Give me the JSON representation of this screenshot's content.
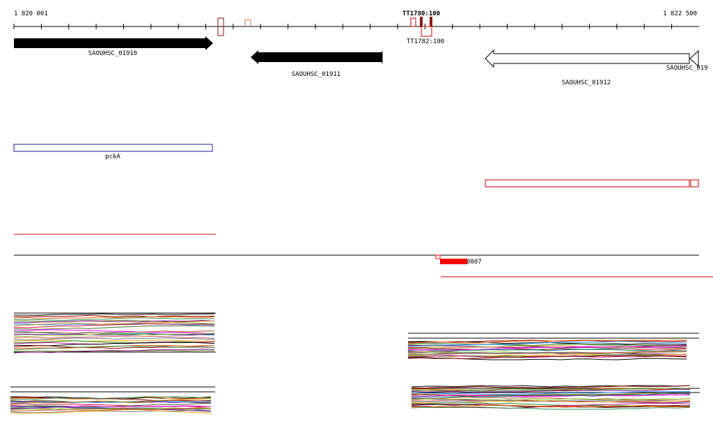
{
  "ruler": {
    "start_label": "1 820 001",
    "end_label": "1 822 500",
    "start_bp": 1820001,
    "end_bp": 1822500
  },
  "colors": {
    "axis": "#000000",
    "gene_fill": "#000000",
    "gene_open": "#ffffff",
    "feature_red": "#cc0000",
    "feature_darkred": "#8b1a1a",
    "feature_blue": "#1a1a99",
    "rna_salmon": "#e07050",
    "signal_red": "#ff0000"
  },
  "terminators": {
    "overlap_label": "TT1780:100",
    "label_below": "TT1782:100"
  },
  "genes": [
    {
      "name": "SAOUHSC_01910",
      "strand": "+",
      "filled": true
    },
    {
      "name": "SAOUHSC_01911",
      "strand": "-",
      "filled": true
    },
    {
      "name": "SAOUHSC_01912",
      "strand": "-",
      "filled": false
    },
    {
      "name": "SAOUHSC_019",
      "strand": "-",
      "filled": false
    }
  ],
  "annotation": {
    "name": "pckA"
  },
  "signal": {
    "label": "0807"
  }
}
